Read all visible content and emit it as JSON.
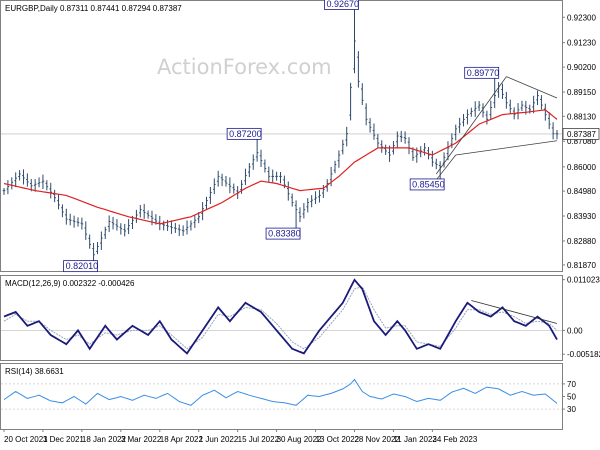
{
  "chart_data": [
    {
      "type": "candlestick",
      "header": "EURGBP,Daily  0.87311 0.87441 0.87294 0.87387",
      "watermark": "ActionForex.com",
      "ylim": [
        0.817,
        0.929
      ],
      "y_ticks": [
        "0.92300",
        "0.91230",
        "0.90200",
        "0.89150",
        "0.88130",
        "0.87080",
        "0.86000",
        "0.84980",
        "0.83930",
        "0.82880",
        "0.81870"
      ],
      "y_tick_values": [
        0.923,
        0.9123,
        0.902,
        0.8915,
        0.8813,
        0.8708,
        0.86,
        0.8498,
        0.8393,
        0.8288,
        0.8187
      ],
      "last_price": "0.87387",
      "last_price_value": 0.87387,
      "annotations": [
        {
          "label": "0.82010",
          "value": 0.8201,
          "i": 23
        },
        {
          "label": "0.87200",
          "value": 0.872,
          "i": 65
        },
        {
          "label": "0.83380",
          "value": 0.8338,
          "i": 75
        },
        {
          "label": "0.92670",
          "value": 0.9267,
          "i": 90
        },
        {
          "label": "0.85450",
          "value": 0.8545,
          "i": 112
        },
        {
          "label": "0.89770",
          "value": 0.8977,
          "i": 126
        }
      ],
      "close_anchors": [
        [
          0,
          0.85
        ],
        [
          4,
          0.857
        ],
        [
          7,
          0.852
        ],
        [
          10,
          0.854
        ],
        [
          13,
          0.847
        ],
        [
          16,
          0.838
        ],
        [
          20,
          0.836
        ],
        [
          23,
          0.823
        ],
        [
          27,
          0.837
        ],
        [
          31,
          0.833
        ],
        [
          35,
          0.842
        ],
        [
          40,
          0.836
        ],
        [
          46,
          0.833
        ],
        [
          50,
          0.839
        ],
        [
          55,
          0.856
        ],
        [
          60,
          0.849
        ],
        [
          63,
          0.86
        ],
        [
          65,
          0.866
        ],
        [
          68,
          0.856
        ],
        [
          71,
          0.856
        ],
        [
          74,
          0.845
        ],
        [
          76,
          0.839
        ],
        [
          78,
          0.845
        ],
        [
          81,
          0.848
        ],
        [
          83,
          0.853
        ],
        [
          86,
          0.865
        ],
        [
          88,
          0.874
        ],
        [
          90,
          0.913
        ],
        [
          91,
          0.896
        ],
        [
          93,
          0.88
        ],
        [
          96,
          0.87
        ],
        [
          99,
          0.865
        ],
        [
          101,
          0.873
        ],
        [
          103,
          0.872
        ],
        [
          105,
          0.864
        ],
        [
          108,
          0.868
        ],
        [
          110,
          0.862
        ],
        [
          112,
          0.86
        ],
        [
          114,
          0.868
        ],
        [
          116,
          0.876
        ],
        [
          119,
          0.882
        ],
        [
          122,
          0.886
        ],
        [
          124,
          0.88
        ],
        [
          126,
          0.89
        ],
        [
          127,
          0.894
        ],
        [
          129,
          0.887
        ],
        [
          131,
          0.882
        ],
        [
          133,
          0.886
        ],
        [
          135,
          0.884
        ],
        [
          137,
          0.89
        ],
        [
          139,
          0.882
        ],
        [
          141,
          0.874
        ],
        [
          142,
          0.8739
        ]
      ],
      "moving_average": {
        "color": "#e02020",
        "anchors": [
          [
            0,
            0.853
          ],
          [
            8,
            0.85
          ],
          [
            16,
            0.848
          ],
          [
            24,
            0.843
          ],
          [
            32,
            0.839
          ],
          [
            40,
            0.836
          ],
          [
            48,
            0.839
          ],
          [
            56,
            0.845
          ],
          [
            62,
            0.851
          ],
          [
            66,
            0.854
          ],
          [
            70,
            0.853
          ],
          [
            76,
            0.85
          ],
          [
            82,
            0.851
          ],
          [
            86,
            0.856
          ],
          [
            90,
            0.862
          ],
          [
            96,
            0.868
          ],
          [
            104,
            0.868
          ],
          [
            110,
            0.865
          ],
          [
            116,
            0.87
          ],
          [
            122,
            0.878
          ],
          [
            128,
            0.882
          ],
          [
            134,
            0.883
          ],
          [
            139,
            0.884
          ],
          [
            142,
            0.88
          ]
        ]
      },
      "channel_lines": [
        {
          "from": [
            111,
            0.857
          ],
          "to": [
            129,
            0.898
          ]
        },
        {
          "from": [
            129,
            0.898
          ],
          "to": [
            142,
            0.889
          ]
        },
        {
          "from": [
            111,
            0.8545
          ],
          "to": [
            116,
            0.865
          ]
        },
        {
          "from": [
            116,
            0.865
          ],
          "to": [
            142,
            0.871
          ]
        }
      ],
      "x_ticks": [
        "20 Oct 2021",
        "3 Dec 2021",
        "18 Jan 2022",
        "3 Mar 2022",
        "18 Apr 2022",
        "1 Jun 2022",
        "15 Jul 2022",
        "30 Aug 2022",
        "13 Oct 2022",
        "28 Nov 2022",
        "11 Jan 2023",
        "24 Feb 2023"
      ],
      "x_tick_index": [
        0,
        10,
        20,
        30,
        40,
        50,
        60,
        70,
        80,
        90,
        100,
        110
      ]
    },
    {
      "type": "line",
      "header": "MACD(12,26,9) 0.002322 -0.000426",
      "ylim": [
        -0.006,
        0.0116
      ],
      "y_ticks": [
        "0.011023",
        "0.00",
        "-0.005182"
      ],
      "y_tick_values": [
        0.011023,
        0.0,
        -0.005182
      ],
      "series": [
        {
          "color": "#1a1a7a",
          "anchors": [
            [
              0,
              0.003
            ],
            [
              3,
              0.004
            ],
            [
              6,
              0.001
            ],
            [
              9,
              0.002
            ],
            [
              12,
              -0.001
            ],
            [
              16,
              -0.003
            ],
            [
              19,
              0.0
            ],
            [
              22,
              -0.004
            ],
            [
              26,
              0.001
            ],
            [
              29,
              -0.002
            ],
            [
              33,
              0.001
            ],
            [
              37,
              -0.001
            ],
            [
              40,
              0.002
            ],
            [
              43,
              -0.002
            ],
            [
              47,
              -0.005
            ],
            [
              51,
              0.0
            ],
            [
              55,
              0.005
            ],
            [
              58,
              0.002
            ],
            [
              62,
              0.006
            ],
            [
              66,
              0.004
            ],
            [
              70,
              0.0
            ],
            [
              74,
              -0.004
            ],
            [
              77,
              -0.005
            ],
            [
              81,
              0.0
            ],
            [
              84,
              0.003
            ],
            [
              87,
              0.006
            ],
            [
              90,
              0.011
            ],
            [
              92,
              0.009
            ],
            [
              95,
              0.002
            ],
            [
              98,
              -0.001
            ],
            [
              101,
              0.002
            ],
            [
              103,
              0.0
            ],
            [
              106,
              -0.004
            ],
            [
              109,
              -0.003
            ],
            [
              112,
              -0.004
            ],
            [
              116,
              0.002
            ],
            [
              119,
              0.006
            ],
            [
              122,
              0.004
            ],
            [
              125,
              0.003
            ],
            [
              128,
              0.005
            ],
            [
              131,
              0.002
            ],
            [
              134,
              0.001
            ],
            [
              137,
              0.003
            ],
            [
              140,
              0.001
            ],
            [
              142,
              -0.002
            ]
          ]
        },
        {
          "color": "#9aa3b8",
          "anchors": [
            [
              0,
              0.002
            ],
            [
              3,
              0.0035
            ],
            [
              6,
              0.002
            ],
            [
              9,
              0.002
            ],
            [
              12,
              0.0
            ],
            [
              16,
              -0.002
            ],
            [
              19,
              -0.001
            ],
            [
              22,
              -0.003
            ],
            [
              26,
              -0.0005
            ],
            [
              29,
              -0.001
            ],
            [
              33,
              0.0
            ],
            [
              37,
              0.0
            ],
            [
              40,
              0.001
            ],
            [
              43,
              -0.001
            ],
            [
              47,
              -0.004
            ],
            [
              51,
              -0.0015
            ],
            [
              55,
              0.0035
            ],
            [
              58,
              0.003
            ],
            [
              62,
              0.005
            ],
            [
              66,
              0.0045
            ],
            [
              70,
              0.0015
            ],
            [
              74,
              -0.0025
            ],
            [
              77,
              -0.004
            ],
            [
              81,
              -0.0015
            ],
            [
              84,
              0.0015
            ],
            [
              87,
              0.0045
            ],
            [
              90,
              0.009
            ],
            [
              92,
              0.0095
            ],
            [
              95,
              0.0045
            ],
            [
              98,
              0.0005
            ],
            [
              101,
              0.001
            ],
            [
              103,
              0.001
            ],
            [
              106,
              -0.0025
            ],
            [
              109,
              -0.003
            ],
            [
              112,
              -0.0035
            ],
            [
              116,
              0.0005
            ],
            [
              119,
              0.0045
            ],
            [
              122,
              0.0045
            ],
            [
              125,
              0.0035
            ],
            [
              128,
              0.004
            ],
            [
              131,
              0.003
            ],
            [
              134,
              0.0015
            ],
            [
              137,
              0.002
            ],
            [
              140,
              0.0015
            ],
            [
              142,
              0.0
            ]
          ]
        }
      ],
      "trend_line": {
        "from": [
          120,
          0.0065
        ],
        "to": [
          142,
          0.0015
        ]
      }
    },
    {
      "type": "line",
      "header": "RSI(14) 38.6631",
      "ylim": [
        0,
        100
      ],
      "y_ticks": [
        "70",
        "50",
        "30"
      ],
      "y_tick_values": [
        70,
        50,
        30
      ],
      "series": [
        {
          "color": "#3a8ee6",
          "anchors": [
            [
              0,
              45
            ],
            [
              3,
              58
            ],
            [
              6,
              47
            ],
            [
              9,
              52
            ],
            [
              12,
              43
            ],
            [
              15,
              40
            ],
            [
              18,
              50
            ],
            [
              21,
              38
            ],
            [
              24,
              55
            ],
            [
              27,
              45
            ],
            [
              30,
              50
            ],
            [
              33,
              44
            ],
            [
              36,
              52
            ],
            [
              39,
              47
            ],
            [
              42,
              55
            ],
            [
              45,
              42
            ],
            [
              48,
              36
            ],
            [
              51,
              52
            ],
            [
              54,
              60
            ],
            [
              57,
              48
            ],
            [
              60,
              58
            ],
            [
              63,
              52
            ],
            [
              66,
              47
            ],
            [
              69,
              42
            ],
            [
              72,
              40
            ],
            [
              75,
              36
            ],
            [
              78,
              52
            ],
            [
              81,
              50
            ],
            [
              84,
              55
            ],
            [
              87,
              62
            ],
            [
              89,
              70
            ],
            [
              90,
              77
            ],
            [
              92,
              58
            ],
            [
              94,
              50
            ],
            [
              97,
              46
            ],
            [
              100,
              54
            ],
            [
              103,
              50
            ],
            [
              106,
              42
            ],
            [
              109,
              47
            ],
            [
              112,
              44
            ],
            [
              115,
              57
            ],
            [
              118,
              63
            ],
            [
              121,
              55
            ],
            [
              124,
              65
            ],
            [
              127,
              62
            ],
            [
              130,
              52
            ],
            [
              133,
              58
            ],
            [
              136,
              52
            ],
            [
              139,
              54
            ],
            [
              142,
              39
            ]
          ]
        }
      ]
    }
  ]
}
